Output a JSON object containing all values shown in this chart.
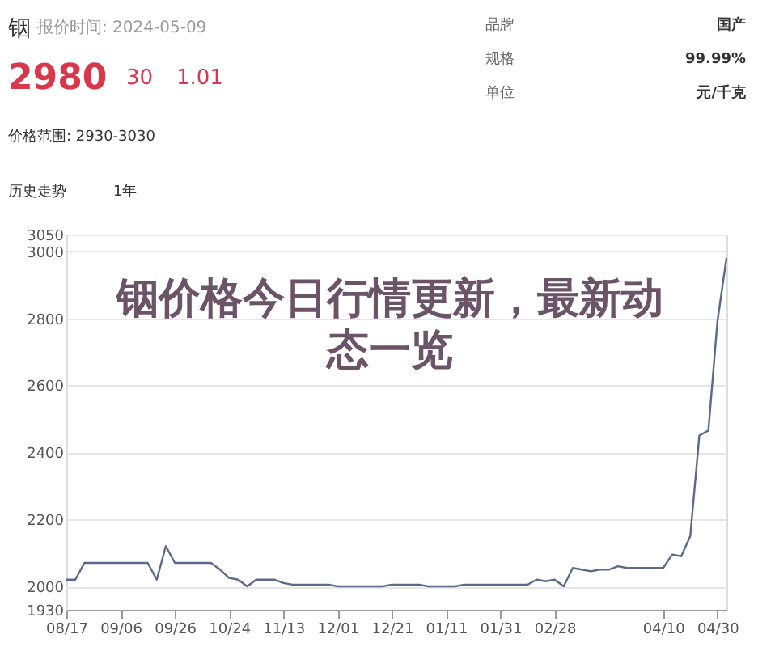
{
  "chart_data": {
    "type": "line",
    "title": "铟价格今日行情更新，最新动态一览",
    "annotations": [
      "铟",
      "报价时间: 2024-05-09",
      "2980",
      "30",
      "1.01",
      "价格范围: 2930-3030",
      "品牌",
      "国产",
      "规格",
      "99.99%",
      "单位",
      "元/千克",
      "历史走势",
      "1年"
    ],
    "categories": [
      "08/17",
      null,
      null,
      null,
      null,
      null,
      "09/06",
      null,
      null,
      null,
      null,
      null,
      "09/26",
      null,
      null,
      null,
      null,
      null,
      "10/24",
      null,
      null,
      null,
      null,
      null,
      "11/13",
      null,
      null,
      null,
      null,
      null,
      "12/01",
      null,
      null,
      null,
      null,
      null,
      "12/21",
      null,
      null,
      null,
      null,
      null,
      "01/11",
      null,
      null,
      null,
      null,
      null,
      "01/31",
      null,
      null,
      null,
      null,
      null,
      "02/28",
      null,
      null,
      null,
      null,
      null,
      null,
      null,
      null,
      null,
      null,
      null,
      "04/10",
      null,
      null,
      null,
      null,
      null,
      "04/30",
      null
    ],
    "series": [
      {
        "color": "#5b6a88",
        "values": [
          2020,
          2020,
          2070,
          2070,
          2070,
          2070,
          2070,
          2070,
          2070,
          2070,
          2020,
          2120,
          2070,
          2070,
          2070,
          2070,
          2070,
          2050,
          2025,
          2020,
          2000,
          2020,
          2020,
          2020,
          2010,
          2005,
          2005,
          2005,
          2005,
          2005,
          2000,
          2000,
          2000,
          2000,
          2000,
          2000,
          2005,
          2005,
          2005,
          2005,
          2000,
          2000,
          2000,
          2000,
          2005,
          2005,
          2005,
          2005,
          2005,
          2005,
          2005,
          2005,
          2020,
          2015,
          2020,
          2000,
          2055,
          2050,
          2045,
          2050,
          2050,
          2060,
          2055,
          2055,
          2055,
          2055,
          2055,
          2095,
          2090,
          2150,
          2450,
          2465,
          2790,
          2980
        ]
      }
    ],
    "ylim": [
      1930,
      3050
    ],
    "yticks": [
      1930,
      2000,
      2200,
      2400,
      2600,
      2800,
      3000,
      3050
    ],
    "grid": "y"
  }
}
